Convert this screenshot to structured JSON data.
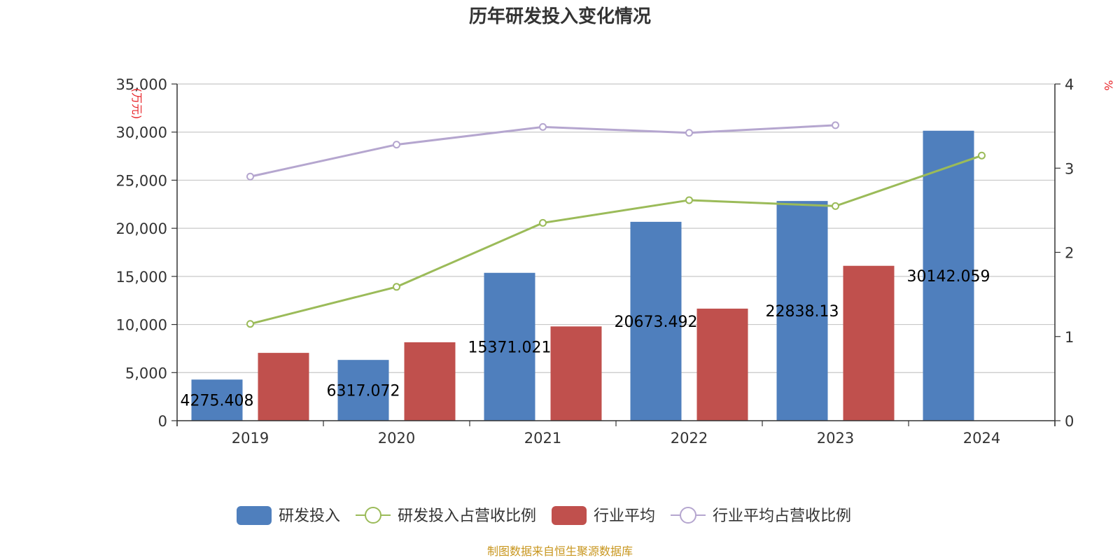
{
  "chart_data": {
    "type": "bar",
    "title": "历年研发投入变化情况",
    "categories": [
      "2019",
      "2020",
      "2021",
      "2022",
      "2023",
      "2024"
    ],
    "y_left": {
      "unit": "(万元)",
      "ylim": [
        0,
        35000
      ],
      "ticks": [
        "0",
        "5,000",
        "10,000",
        "15,000",
        "20,000",
        "25,000",
        "30,000",
        "35,000"
      ]
    },
    "y_right": {
      "unit": "%",
      "ylim": [
        0,
        4
      ],
      "ticks": [
        "0",
        "1",
        "2",
        "3",
        "4"
      ]
    },
    "grid": true,
    "legend_position": "bottom",
    "series": [
      {
        "name": "研发投入",
        "kind": "bar",
        "axis": "left",
        "color": "#4f7fbd",
        "values": [
          4275.408,
          6317.072,
          15371.021,
          20673.492,
          22838.13,
          30142.059
        ],
        "labels": [
          "4275.408",
          "6317.072",
          "15371.021",
          "20673.492",
          "22838.13",
          "30142.059"
        ]
      },
      {
        "name": "研发投入占营收比例",
        "kind": "line",
        "axis": "right",
        "color": "#9bbb59",
        "values": [
          1.15,
          1.59,
          2.35,
          2.62,
          2.55,
          3.15
        ]
      },
      {
        "name": "行业平均",
        "kind": "bar",
        "axis": "left",
        "color": "#c0504d",
        "values": [
          7050,
          8150,
          9800,
          11650,
          16100,
          null
        ]
      },
      {
        "name": "行业平均占营收比例",
        "kind": "line",
        "axis": "right",
        "color": "#b5a6cf",
        "values": [
          2.9,
          3.28,
          3.49,
          3.42,
          3.51,
          null
        ]
      }
    ],
    "source": "制图数据来自恒生聚源数据库"
  }
}
